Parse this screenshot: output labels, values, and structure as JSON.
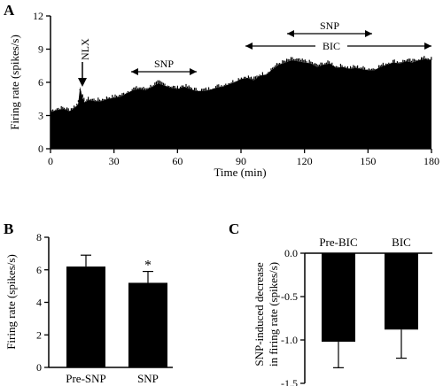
{
  "figure": {
    "panel_labels": [
      "A",
      "B",
      "C"
    ]
  },
  "chart_data": [
    {
      "panel": "A",
      "type": "area",
      "title": "",
      "xlabel": "Time (min)",
      "ylabel": "Firing rate (spikes/s)",
      "xlim": [
        0,
        180
      ],
      "ylim": [
        0,
        12
      ],
      "xticks": [
        0,
        30,
        60,
        90,
        120,
        150,
        180
      ],
      "yticks": [
        0,
        3,
        6,
        9,
        12
      ],
      "grid": false,
      "series": [
        {
          "x": [
            0,
            3,
            6,
            9,
            12,
            13,
            14,
            15,
            16,
            18,
            21,
            24,
            27,
            30,
            33,
            36,
            39,
            42,
            45,
            48,
            51,
            54,
            57,
            60,
            63,
            66,
            69,
            72,
            75,
            78,
            81,
            84,
            87,
            90,
            93,
            96,
            99,
            102,
            105,
            108,
            111,
            114,
            117,
            120,
            123,
            126,
            129,
            132,
            135,
            138,
            141,
            144,
            147,
            150,
            153,
            156,
            159,
            162,
            165,
            168,
            171,
            174,
            177,
            180
          ],
          "y": [
            3.3,
            3.5,
            3.6,
            3.4,
            3.8,
            4.0,
            5.6,
            4.7,
            4.2,
            4.4,
            4.3,
            4.3,
            4.5,
            4.6,
            4.7,
            5.0,
            5.3,
            5.4,
            5.3,
            5.6,
            5.9,
            5.7,
            5.5,
            5.4,
            5.6,
            5.4,
            5.2,
            5.2,
            5.3,
            5.5,
            5.6,
            5.8,
            6.0,
            6.3,
            6.4,
            6.2,
            6.6,
            6.7,
            7.2,
            7.6,
            7.8,
            8.0,
            7.9,
            7.8,
            7.7,
            7.4,
            7.6,
            7.7,
            7.3,
            7.4,
            7.2,
            7.3,
            7.2,
            7.1,
            7.1,
            7.4,
            7.6,
            7.8,
            7.7,
            7.9,
            7.8,
            8.0,
            8.1,
            8.0
          ]
        }
      ],
      "annotations": [
        {
          "label": "NLX",
          "type": "arrow-down",
          "x": 15
        },
        {
          "label": "SNP",
          "type": "span",
          "x_start": 38,
          "x_end": 67
        },
        {
          "label": "SNP",
          "type": "span",
          "x_start": 108,
          "x_end": 146
        },
        {
          "label": "BIC",
          "type": "span",
          "x_start": 90,
          "x_end": 180
        }
      ]
    },
    {
      "panel": "B",
      "type": "bar",
      "title": "",
      "xlabel": "",
      "ylabel": "Firing rate (spikes/s)",
      "ylim": [
        0,
        8
      ],
      "yticks": [
        0,
        2,
        4,
        6,
        8
      ],
      "grid": false,
      "categories": [
        "Pre-SNP",
        "SNP"
      ],
      "values": [
        6.2,
        5.2
      ],
      "errors": [
        0.7,
        0.7
      ],
      "significance": [
        "",
        "*"
      ]
    },
    {
      "panel": "C",
      "type": "bar",
      "title": "",
      "xlabel": "",
      "ylabel": "SNP-induced decrease in firing rate (spikes/s)",
      "ylim": [
        -1.5,
        0
      ],
      "yticks": [
        "0.0",
        "-0.5",
        "-1.0",
        "-1.5"
      ],
      "grid": false,
      "categories": [
        "Pre-BIC",
        "BIC"
      ],
      "values": [
        -1.02,
        -0.88
      ],
      "errors": [
        0.3,
        0.33
      ]
    }
  ]
}
